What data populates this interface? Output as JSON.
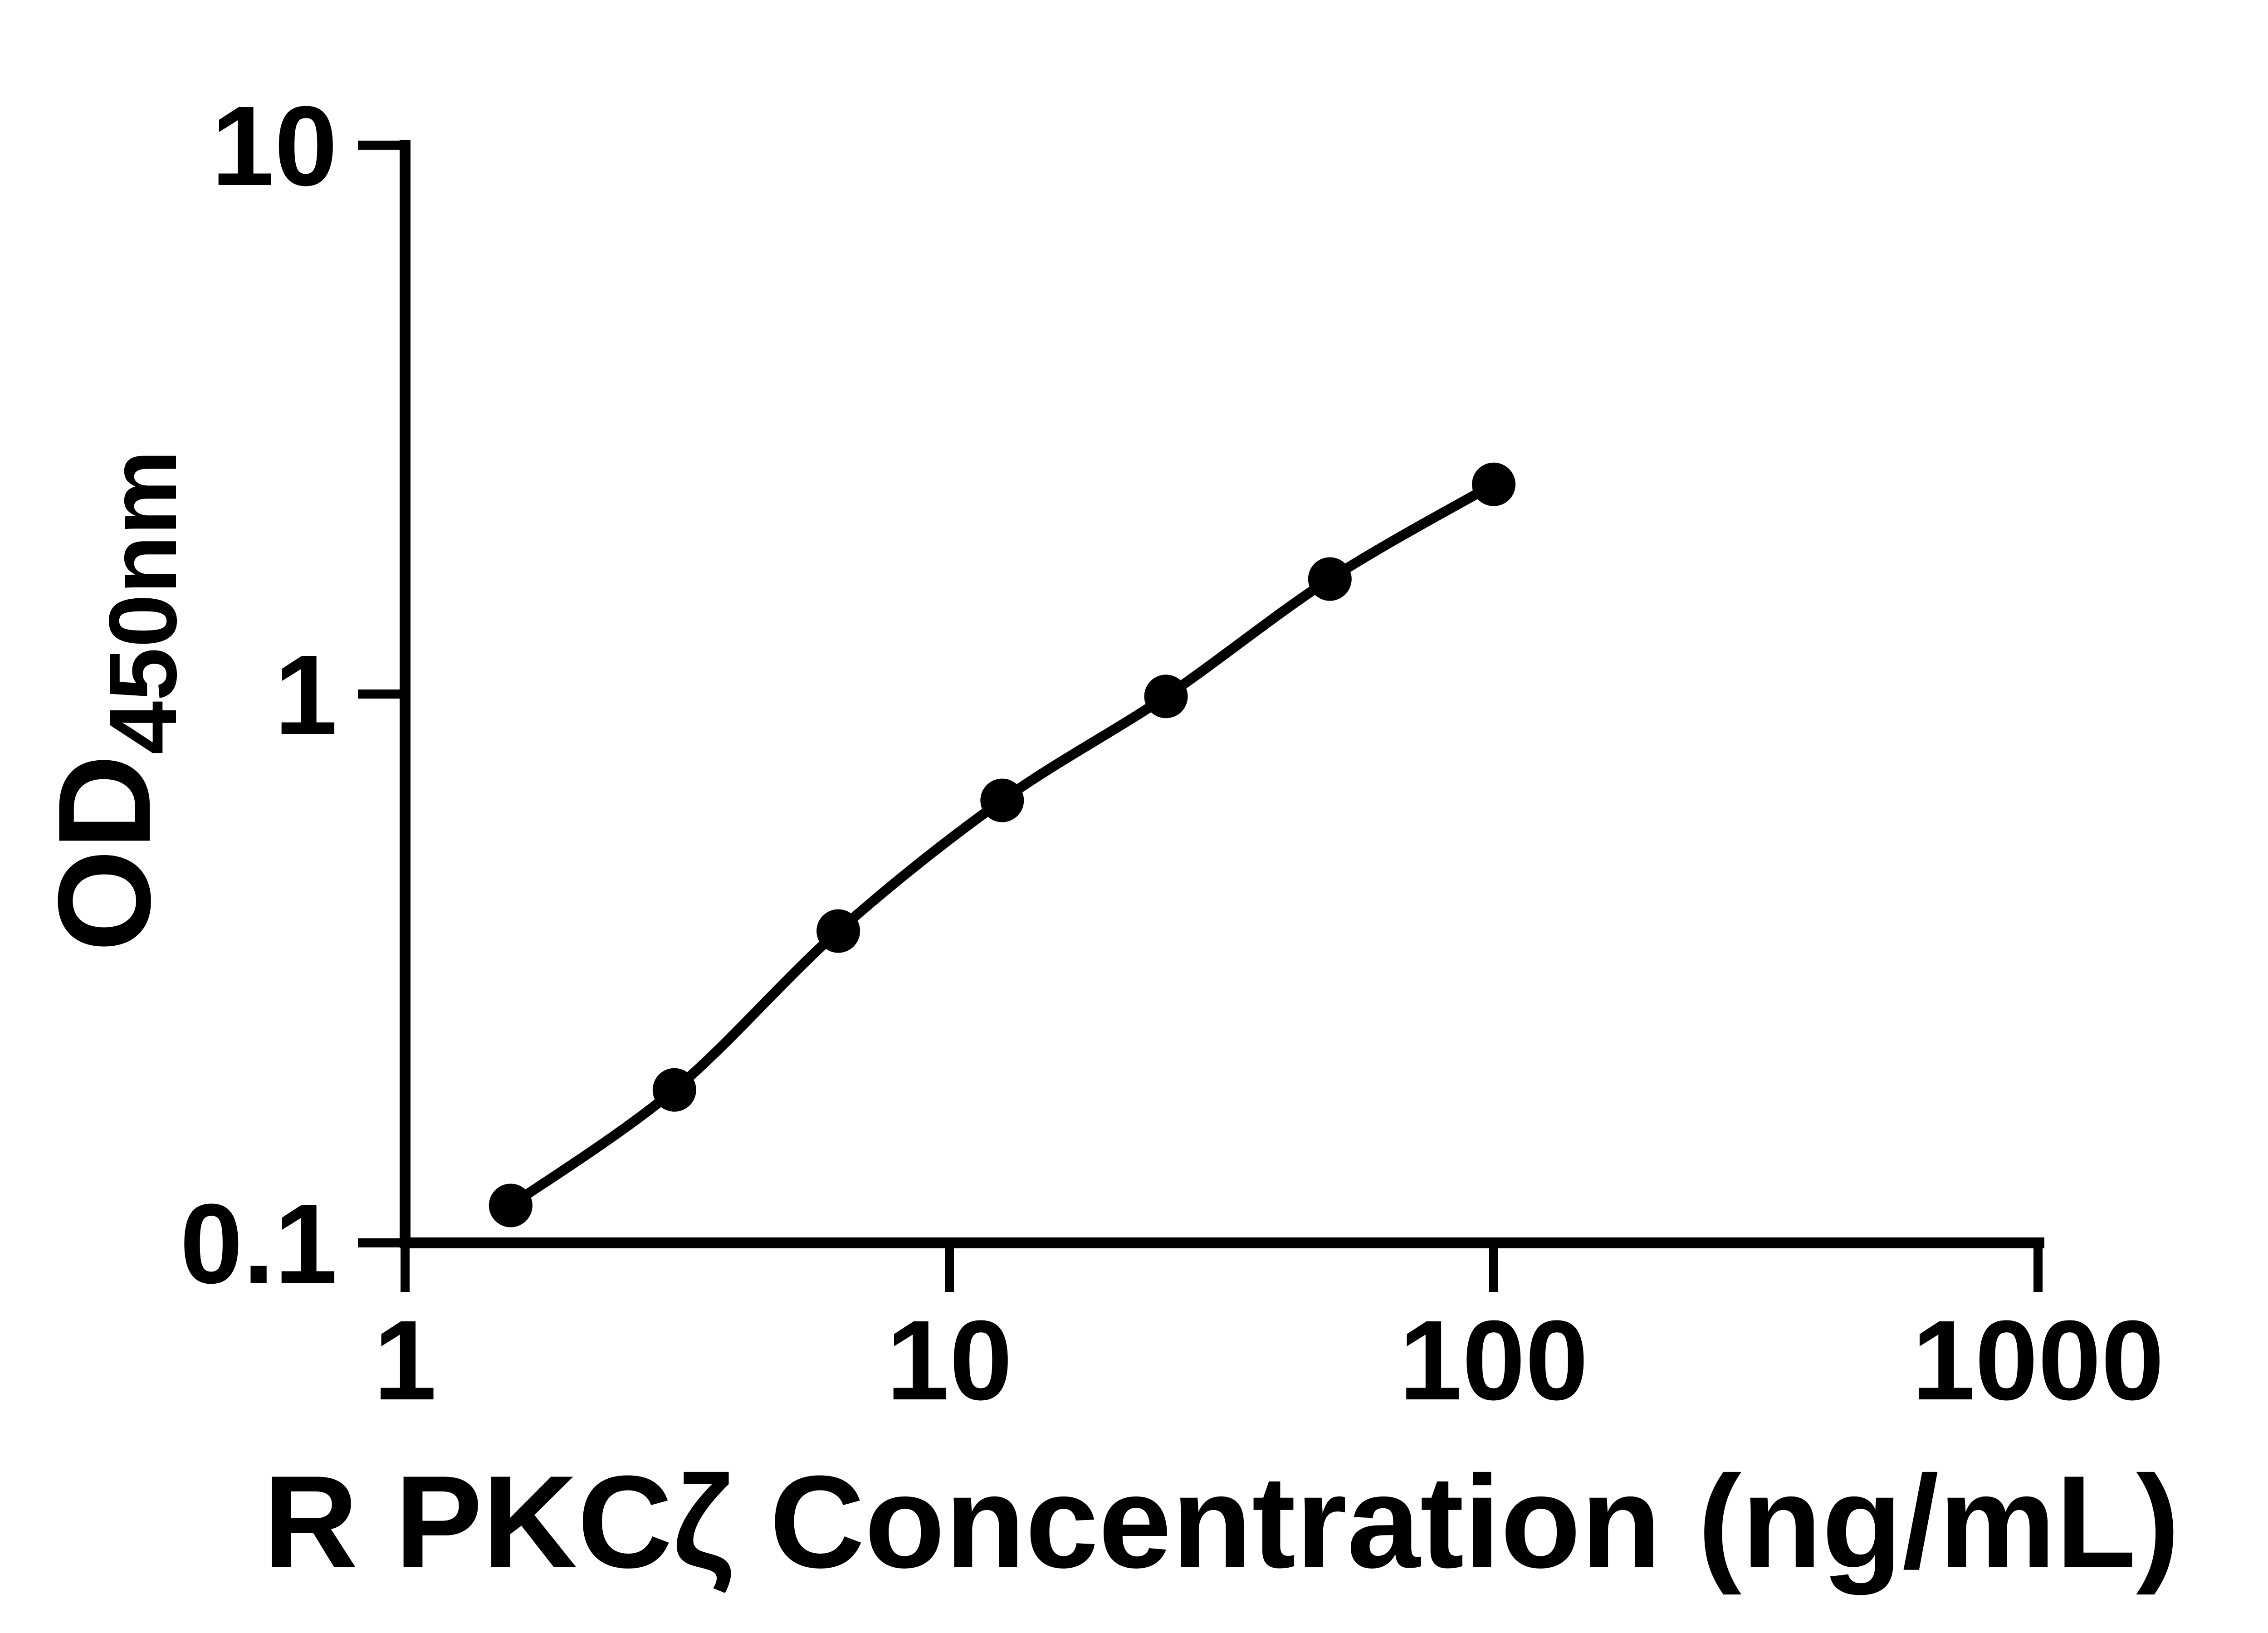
{
  "page": {
    "background": "#ffffff"
  },
  "chart_data": {
    "type": "scatter",
    "title": "",
    "xlabel": "R PKCζ Concentration (ng/mL)",
    "ylabel": "OD450nm",
    "ylabel_main": "OD",
    "ylabel_sub": "450nm",
    "x": [
      1.563,
      3.125,
      6.25,
      12.5,
      25,
      50,
      100
    ],
    "y": [
      0.117,
      0.19,
      0.37,
      0.64,
      0.99,
      1.62,
      2.41
    ],
    "x_scale": "log",
    "y_scale": "log",
    "xlim": [
      1,
      1000
    ],
    "ylim": [
      0.1,
      10
    ],
    "x_ticks": [
      1,
      10,
      100,
      1000
    ],
    "x_tick_labels": [
      "1",
      "10",
      "100",
      "1000"
    ],
    "y_ticks": [
      0.1,
      1,
      10
    ],
    "y_tick_labels": [
      "0.1",
      "1",
      "10"
    ],
    "grid": false,
    "legend": "none",
    "curve": "smooth line through points, no extrapolation beyond first/last point",
    "axis_color": "#000000",
    "line_color": "#000000",
    "marker_color": "#000000",
    "marker_shape": "filled-circle"
  }
}
